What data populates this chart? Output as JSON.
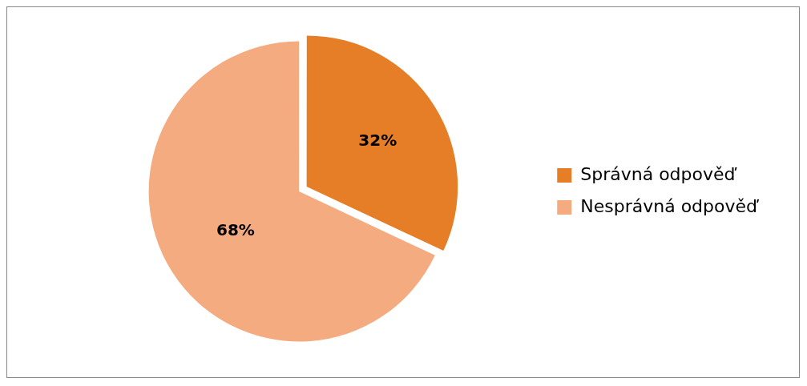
{
  "chart_data": {
    "type": "pie",
    "categories": [
      "Správná odpověď",
      "Nesprávná odpověď"
    ],
    "values": [
      32,
      68
    ],
    "colors": [
      "#e57e26",
      "#f5ab80"
    ],
    "value_labels": [
      "32%",
      "68%"
    ],
    "legend": "right"
  }
}
